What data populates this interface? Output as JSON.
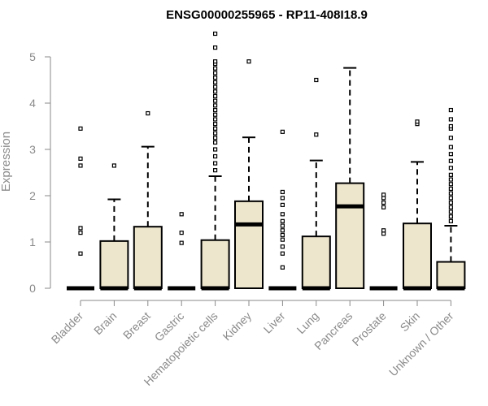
{
  "chart_data": {
    "type": "boxplot",
    "title": "ENSG00000255965 - RP11-408I18.9",
    "xlabel": "",
    "ylabel": "Expression",
    "ylim": [
      0,
      5.5
    ],
    "yticks": [
      "0",
      "1",
      "2",
      "3",
      "4",
      "5"
    ],
    "categories": [
      "Bladder",
      "Brain",
      "Breast",
      "Gastric",
      "Hematopoietic cells",
      "Kidney",
      "Liver",
      "Lung",
      "Pancreas",
      "Prostate",
      "Skin",
      "Unknown / Other"
    ],
    "boxes": [
      {
        "q1": 0,
        "median": 0,
        "q3": 0,
        "whisker_low": 0,
        "whisker_high": 0,
        "outliers": [
          0.75,
          1.2,
          1.3,
          2.65,
          2.8,
          3.45
        ]
      },
      {
        "q1": 0,
        "median": 0,
        "q3": 1.02,
        "whisker_low": 0,
        "whisker_high": 1.92,
        "outliers": [
          2.65
        ]
      },
      {
        "q1": 0,
        "median": 0,
        "q3": 1.33,
        "whisker_low": 0,
        "whisker_high": 3.06,
        "outliers": [
          3.78
        ]
      },
      {
        "q1": 0,
        "median": 0,
        "q3": 0,
        "whisker_low": 0,
        "whisker_high": 0,
        "outliers": [
          0.98,
          1.2,
          1.6
        ]
      },
      {
        "q1": 0,
        "median": 0,
        "q3": 1.04,
        "whisker_low": 0,
        "whisker_high": 2.42,
        "outliers": [
          2.55,
          2.7,
          2.85,
          3.0,
          3.15,
          3.25,
          3.35,
          3.45,
          3.55,
          3.65,
          3.75,
          3.85,
          3.95,
          4.05,
          4.15,
          4.25,
          4.35,
          4.45,
          4.55,
          4.65,
          4.75,
          4.85,
          4.9,
          5.2,
          5.5
        ]
      },
      {
        "q1": 0,
        "median": 1.38,
        "q3": 1.88,
        "whisker_low": 0,
        "whisker_high": 3.26,
        "outliers": [
          4.9
        ]
      },
      {
        "q1": 0,
        "median": 0,
        "q3": 0,
        "whisker_low": 0,
        "whisker_high": 0,
        "outliers": [
          0.45,
          0.75,
          0.9,
          1.05,
          1.15,
          1.25,
          1.35,
          1.45,
          1.6,
          1.8,
          1.95,
          2.08,
          3.38
        ]
      },
      {
        "q1": 0,
        "median": 0,
        "q3": 1.12,
        "whisker_low": 0,
        "whisker_high": 2.76,
        "outliers": [
          3.32,
          4.5
        ]
      },
      {
        "q1": 0,
        "median": 1.77,
        "q3": 2.27,
        "whisker_low": 0,
        "whisker_high": 4.76,
        "outliers": []
      },
      {
        "q1": 0,
        "median": 0,
        "q3": 0,
        "whisker_low": 0,
        "whisker_high": 0,
        "outliers": [
          1.18,
          1.25,
          1.75,
          1.85,
          1.95,
          2.02
        ]
      },
      {
        "q1": 0,
        "median": 0,
        "q3": 1.4,
        "whisker_low": 0,
        "whisker_high": 2.73,
        "outliers": [
          3.55,
          3.6
        ]
      },
      {
        "q1": 0,
        "median": 0,
        "q3": 0.57,
        "whisker_low": 0,
        "whisker_high": 1.35,
        "outliers": [
          1.45,
          1.55,
          1.65,
          1.75,
          1.85,
          1.95,
          2.05,
          2.15,
          2.25,
          2.35,
          2.45,
          2.6,
          2.75,
          2.9,
          3.05,
          3.25,
          3.45,
          3.5,
          3.65,
          3.85
        ]
      }
    ],
    "colors": {
      "box_fill": "#ede5cc",
      "stroke": "#000000",
      "axis": "#8a8a8a"
    },
    "grid": false
  }
}
